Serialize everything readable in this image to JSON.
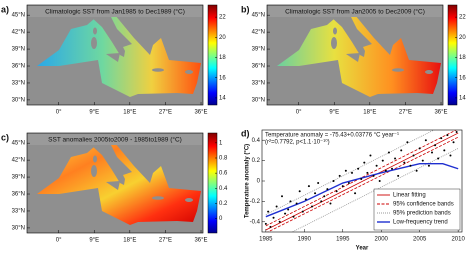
{
  "chart_data": [
    {
      "type": "map",
      "panel_label": "a)",
      "title": "Climatologic SST from Jan1985 to Dec1989 (°C)",
      "lonlim": [
        -8,
        36.5
      ],
      "latlim": [
        29.1,
        46.8
      ],
      "xticks": [
        {
          "value": 0,
          "label": "0°"
        },
        {
          "value": 9,
          "label": "9°E"
        },
        {
          "value": 18,
          "label": "18°E"
        },
        {
          "value": 27,
          "label": "27°E"
        },
        {
          "value": 36,
          "label": "36°E"
        }
      ],
      "yticks": [
        {
          "value": 30,
          "label": "30°N"
        },
        {
          "value": 33,
          "label": "33°N"
        },
        {
          "value": 36,
          "label": "36°N"
        },
        {
          "value": 39,
          "label": "39°N"
        },
        {
          "value": 42,
          "label": "42°N"
        },
        {
          "value": 45,
          "label": "45°N"
        }
      ],
      "clim": [
        13.3,
        23.2
      ],
      "cticks": [
        14,
        16,
        18,
        20,
        22
      ]
    },
    {
      "type": "map",
      "panel_label": "b)",
      "title": "Climatologic SST from Jan2005 to Dec2009 (°C)",
      "lonlim": [
        -8,
        36.5
      ],
      "latlim": [
        29.1,
        46.8
      ],
      "xticks": [
        {
          "value": 0,
          "label": "0°"
        },
        {
          "value": 9,
          "label": "9°E"
        },
        {
          "value": 18,
          "label": "18°E"
        },
        {
          "value": 27,
          "label": "27°E"
        },
        {
          "value": 36,
          "label": "36°E"
        }
      ],
      "yticks": [
        {
          "value": 30,
          "label": "30°N"
        },
        {
          "value": 33,
          "label": "33°N"
        },
        {
          "value": 36,
          "label": "36°N"
        },
        {
          "value": 39,
          "label": "39°N"
        },
        {
          "value": 42,
          "label": "42°N"
        },
        {
          "value": 45,
          "label": "45°N"
        }
      ],
      "clim": [
        13.3,
        23.2
      ],
      "cticks": [
        14,
        16,
        18,
        20,
        22
      ]
    },
    {
      "type": "map",
      "panel_label": "c)",
      "title": "SST anomalies 2005to2009 - 1985to1989 (°C)",
      "lonlim": [
        -8,
        36.5
      ],
      "latlim": [
        29.1,
        46.8
      ],
      "xticks": [
        {
          "value": 0,
          "label": "0°"
        },
        {
          "value": 9,
          "label": "9°E"
        },
        {
          "value": 18,
          "label": "18°E"
        },
        {
          "value": 27,
          "label": "27°E"
        },
        {
          "value": 36,
          "label": "36°E"
        }
      ],
      "yticks": [
        {
          "value": 30,
          "label": "30°N"
        },
        {
          "value": 33,
          "label": "33°N"
        },
        {
          "value": 36,
          "label": "36°N"
        },
        {
          "value": 39,
          "label": "39°N"
        },
        {
          "value": 42,
          "label": "42°N"
        },
        {
          "value": 45,
          "label": "45°N"
        }
      ],
      "clim": [
        -0.19,
        1.13
      ],
      "cticks": [
        0,
        0.2,
        0.4,
        0.6,
        0.8,
        1
      ]
    },
    {
      "type": "scatter",
      "panel_label": "d)",
      "annotations": [
        "Temperature anomaly = -75.43+0.03776 °C year⁻¹",
        "(r²=0.7792, p<1.1·10⁻¹⁰)"
      ],
      "xlabel": "Year",
      "ylabel": "Temperature anomaly (°C)",
      "xlim": [
        1984.5,
        2010.5
      ],
      "ylim": [
        -0.5,
        0.5
      ],
      "xticks": [
        1985,
        1990,
        1995,
        2000,
        2005,
        2010
      ],
      "yticks": [
        -0.4,
        -0.2,
        0,
        0.2,
        0.4
      ],
      "points": {
        "color": "#000000",
        "x": [
          1985.0,
          1985.3,
          1985.6,
          1986.0,
          1986.4,
          1986.8,
          1987.1,
          1987.5,
          1987.9,
          1988.2,
          1988.6,
          1989.0,
          1989.4,
          1989.8,
          1990.2,
          1990.6,
          1991.0,
          1991.4,
          1991.8,
          1992.2,
          1992.6,
          1993.0,
          1993.4,
          1993.8,
          1994.2,
          1994.6,
          1995.0,
          1995.4,
          1995.8,
          1996.2,
          1996.6,
          1997.0,
          1997.4,
          1997.8,
          1998.2,
          1998.6,
          1999.0,
          1999.4,
          1999.8,
          2000.2,
          2000.6,
          2001.0,
          2001.4,
          2001.8,
          2002.2,
          2002.6,
          2003.0,
          2003.4,
          2003.8,
          2004.2,
          2004.6,
          2005.0,
          2005.4,
          2005.8,
          2006.2,
          2006.6,
          2007.0,
          2007.4,
          2007.8,
          2008.2,
          2008.6,
          2009.0,
          2009.4,
          2009.8
        ],
        "y": [
          -0.42,
          -0.3,
          -0.45,
          -0.36,
          -0.25,
          -0.4,
          -0.15,
          -0.32,
          -0.28,
          -0.2,
          -0.35,
          -0.22,
          -0.1,
          -0.3,
          -0.18,
          -0.05,
          -0.25,
          -0.12,
          -0.02,
          -0.2,
          -0.15,
          -0.08,
          -0.22,
          0.0,
          -0.1,
          0.05,
          -0.05,
          0.1,
          -0.02,
          0.08,
          -0.12,
          0.12,
          0.02,
          0.18,
          0.08,
          0.25,
          0.05,
          0.15,
          0.0,
          0.2,
          0.1,
          0.28,
          0.12,
          0.22,
          0.05,
          0.3,
          0.18,
          0.38,
          0.15,
          0.25,
          0.1,
          0.32,
          0.2,
          0.4,
          0.15,
          0.28,
          0.35,
          0.22,
          0.42,
          0.3,
          0.45,
          0.25,
          0.38,
          0.48
        ]
      },
      "series": [
        {
          "name": "Linear fitting",
          "color": "#cc0000",
          "style": "solid",
          "x": [
            1985,
            2010
          ],
          "values": [
            -0.48,
            0.47
          ]
        },
        {
          "name": "95% confidence bands",
          "color": "#cc0000",
          "style": "dashed",
          "x": [
            1985,
            2010
          ],
          "lower": [
            -0.51,
            0.43
          ],
          "upper": [
            -0.44,
            0.51
          ]
        },
        {
          "name": "95% prediction bands",
          "color": "#999999",
          "style": "dotted",
          "x": [
            1985,
            2010
          ],
          "lower": [
            -0.63,
            0.32
          ],
          "upper": [
            -0.33,
            0.62
          ]
        },
        {
          "name": "Low-frequency trend",
          "color": "#1f2fd0",
          "style": "solid",
          "x": [
            1985,
            1990,
            1995,
            2000,
            2005,
            2008,
            2010
          ],
          "values": [
            -0.35,
            -0.2,
            -0.02,
            0.08,
            0.17,
            0.17,
            0.12
          ]
        }
      ],
      "legend": "lower right"
    }
  ]
}
